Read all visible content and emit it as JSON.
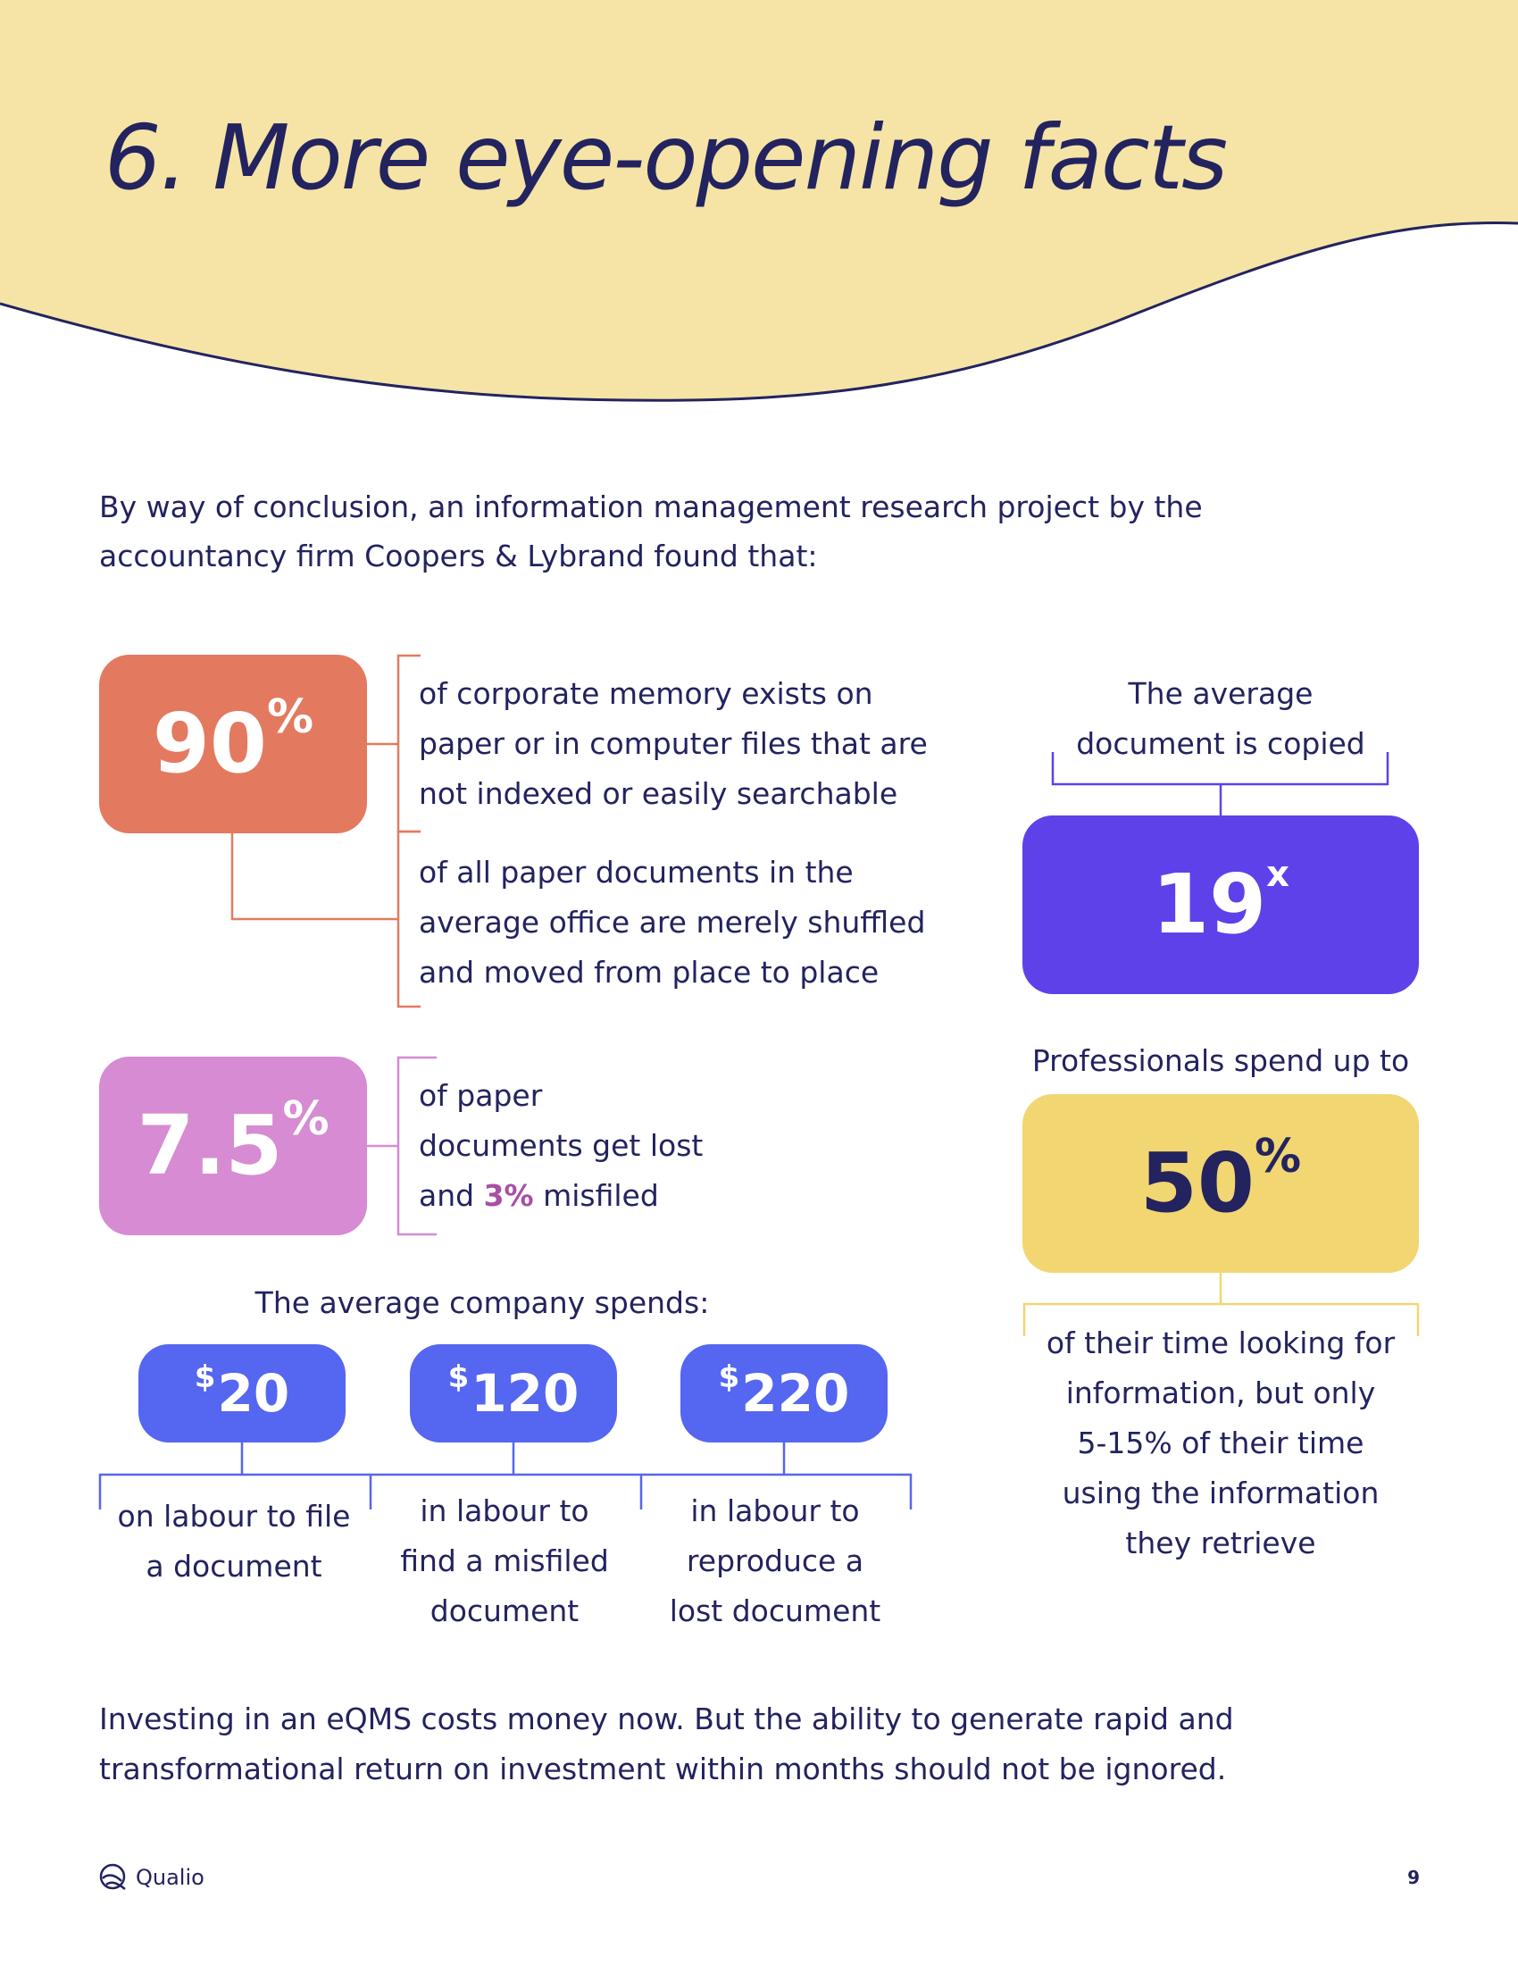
{
  "header": {
    "title": "6. More eye-opening facts"
  },
  "intro": {
    "line1": "By way of conclusion, an information management research project by the",
    "line2": "accountancy firm Coopers & Lybrand found that:"
  },
  "stat_90": {
    "number": "90",
    "unit": "%",
    "fact1": [
      "of corporate memory exists on",
      "paper or in computer files that are",
      "not indexed or easily searchable"
    ],
    "fact2": [
      "of all paper documents in the",
      "average office are merely shuffled",
      "and moved from place to place"
    ]
  },
  "stat_7_5": {
    "number": "7.5",
    "unit": "%",
    "line1": "of paper",
    "line2": "documents get lost",
    "line3_pre": "and ",
    "line3_highlight": "3%",
    "line3_post": " misfiled"
  },
  "stat_19": {
    "caption": [
      "The average",
      "document is copied"
    ],
    "number": "19",
    "unit": "x"
  },
  "stat_50": {
    "caption": "Professionals spend up to",
    "number": "50",
    "unit": "%",
    "detail": [
      "of their time looking for",
      "information, but only",
      "5-15% of their time",
      "using the information",
      "they retrieve"
    ]
  },
  "spending": {
    "heading": "The average company spends:",
    "items": [
      {
        "currency": "$",
        "amount": "20",
        "caption": [
          "on labour to file",
          "a document"
        ]
      },
      {
        "currency": "$",
        "amount": "120",
        "caption": [
          "in labour to",
          "find a misfiled",
          "document"
        ]
      },
      {
        "currency": "$",
        "amount": "220",
        "caption": [
          "in labour to",
          "reproduce a",
          "lost document"
        ]
      }
    ]
  },
  "closing": {
    "line1": "Investing in an eQMS costs money now. But the ability to generate rapid and",
    "line2": "transformational return on investment within months should not be ignored."
  },
  "footer": {
    "logo_text": "Qualio",
    "page_number": "9"
  },
  "colors": {
    "header_bg": "#f5e4a6",
    "navy": "#23235f",
    "coral": "#e37a60",
    "orchid": "#d68bd2",
    "violet": "#5f41ea",
    "yellow": "#f1d672",
    "blue": "#5566f0",
    "magenta_highlight": "#a84fa4"
  }
}
